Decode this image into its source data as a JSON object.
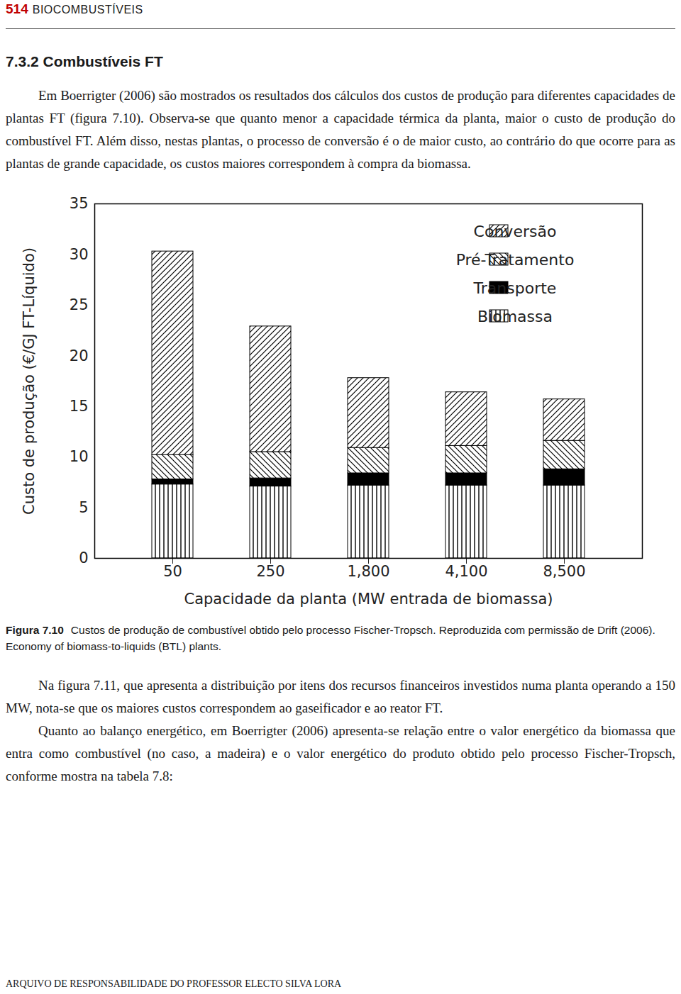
{
  "header": {
    "page_number": "514",
    "running_title": "BIOCOMBUSTÍVEIS"
  },
  "section_title": "7.3.2 Combustíveis FT",
  "paragraphs_before": [
    "Em Boerrigter (2006) são mostrados os resultados dos cálculos dos custos de produção para diferentes capacidades de plantas FT (figura 7.10). Observa-se que quanto menor a capacidade térmica da planta, maior o custo de produção do combustível FT. Além disso, nestas plantas, o processo de conversão é o de maior custo, ao contrário do que ocorre para as plantas de grande capacidade, os custos maiores correspondem à compra da biomassa."
  ],
  "chart_data": {
    "type": "bar",
    "stacked": true,
    "xlabel": "Capacidade da planta (MW entrada de biomassa)",
    "ylabel": "Custo de produção (€/GJ FT-Líquido)",
    "categories": [
      "50",
      "250",
      "1,800",
      "4,100",
      "8,500"
    ],
    "ylim": [
      0,
      35
    ],
    "yticks": [
      0,
      5,
      10,
      15,
      20,
      25,
      30,
      35
    ],
    "legend": "upper right",
    "series": [
      {
        "name": "Conversão",
        "color": "#000000",
        "values": [
          20.1,
          12.4,
          6.9,
          5.3,
          4.1
        ]
      },
      {
        "name": "Pré-Tratamento",
        "color": "#000000",
        "values": [
          2.4,
          2.6,
          2.5,
          2.7,
          2.8
        ]
      },
      {
        "name": "Transporte",
        "color": "#000000",
        "values": [
          0.5,
          0.8,
          1.2,
          1.2,
          1.6
        ]
      },
      {
        "name": "Biomassa",
        "color": "#000000",
        "values": [
          7.3,
          7.1,
          7.2,
          7.2,
          7.2
        ]
      }
    ]
  },
  "caption": {
    "label": "Figura 7.10",
    "text": "Custos de produção de combustível obtido pelo processo Fischer-Tropsch. Reproduzida com permissão de Drift (2006). Economy of biomass-to-liquids (BTL) plants."
  },
  "paragraphs_after": [
    "Na figura 7.11, que apresenta a distribuição por itens dos recursos financeiros investidos numa planta operando a 150 MW, nota-se que os maiores custos correspondem ao gaseificador e ao reator FT.",
    "Quanto ao balanço energético, em Boerrigter (2006) apresenta-se relação entre o valor energético da biomassa que entra como combustível (no caso, a madeira) e o valor energético do produto obtido pelo processo Fischer-Tropsch, conforme mostra na tabela 7.8:"
  ],
  "footer": "ARQUIVO DE RESPONSABILIDADE DO PROFESSOR ELECTO SILVA LORA"
}
